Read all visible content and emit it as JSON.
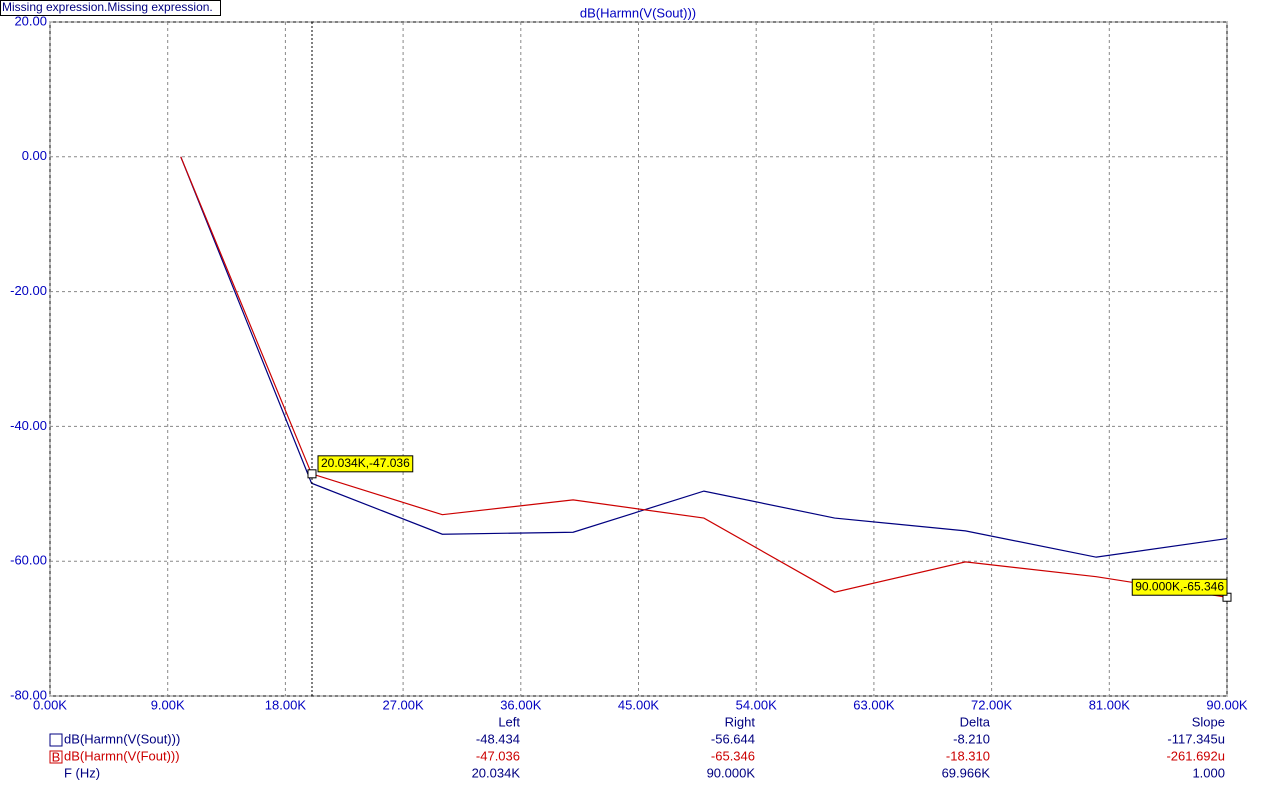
{
  "chart_data": {
    "type": "line",
    "title": "dB(Harmn(V(Sout)))",
    "header_note": "Missing expression.Missing expression.",
    "x": [
      10000,
      20000,
      30000,
      40000,
      50000,
      60000,
      70000,
      80000,
      90000
    ],
    "series": [
      {
        "name": "dB(Harmn(V(Sout)))",
        "color": "#000080",
        "values": [
          0,
          -48.434,
          -56,
          -55.7,
          -49.6,
          -53.6,
          -55.5,
          -59.4,
          -56.644
        ]
      },
      {
        "name": "dB(Harmn(V(Fout)))",
        "color": "#cc0000",
        "marker_label": "B",
        "values": [
          0,
          -47.036,
          -53.1,
          -50.9,
          -53.6,
          -64.6,
          -60.1,
          -62.3,
          -65.346
        ]
      }
    ],
    "xlim": [
      0,
      90000
    ],
    "ylim": [
      -80,
      20
    ],
    "xticks": [
      {
        "value": 0,
        "label": "0.00K"
      },
      {
        "value": 9000,
        "label": "9.00K"
      },
      {
        "value": 18000,
        "label": "18.00K"
      },
      {
        "value": 27000,
        "label": "27.00K"
      },
      {
        "value": 36000,
        "label": "36.00K"
      },
      {
        "value": 45000,
        "label": "45.00K"
      },
      {
        "value": 54000,
        "label": "54.00K"
      },
      {
        "value": 63000,
        "label": "63.00K"
      },
      {
        "value": 72000,
        "label": "72.00K"
      },
      {
        "value": 81000,
        "label": "81.00K"
      },
      {
        "value": 90000,
        "label": "90.00K"
      }
    ],
    "yticks": [
      {
        "value": 20,
        "label": "20.00"
      },
      {
        "value": 0,
        "label": "0.00"
      },
      {
        "value": -20,
        "label": "-20.00"
      },
      {
        "value": -40,
        "label": "-40.00"
      },
      {
        "value": -60,
        "label": "-60.00"
      },
      {
        "value": -80,
        "label": "-80.00"
      }
    ],
    "grid": true,
    "cursor_x": 20034,
    "annotations": [
      {
        "text": "20.034K,-47.036",
        "x": 20034,
        "y": -47.036
      },
      {
        "text": "90.000K,-65.346",
        "x": 90000,
        "y": -65.346
      }
    ],
    "cursor_table": {
      "columns": [
        "Left",
        "Right",
        "Delta",
        "Slope"
      ],
      "x_row_label": "F (Hz)",
      "rows": [
        [
          "-48.434",
          "-56.644",
          "-8.210",
          "-117.345u"
        ],
        [
          "-47.036",
          "-65.346",
          "-18.310",
          "-261.692u"
        ],
        [
          "20.034K",
          "90.000K",
          "69.966K",
          "1.000"
        ]
      ]
    }
  }
}
